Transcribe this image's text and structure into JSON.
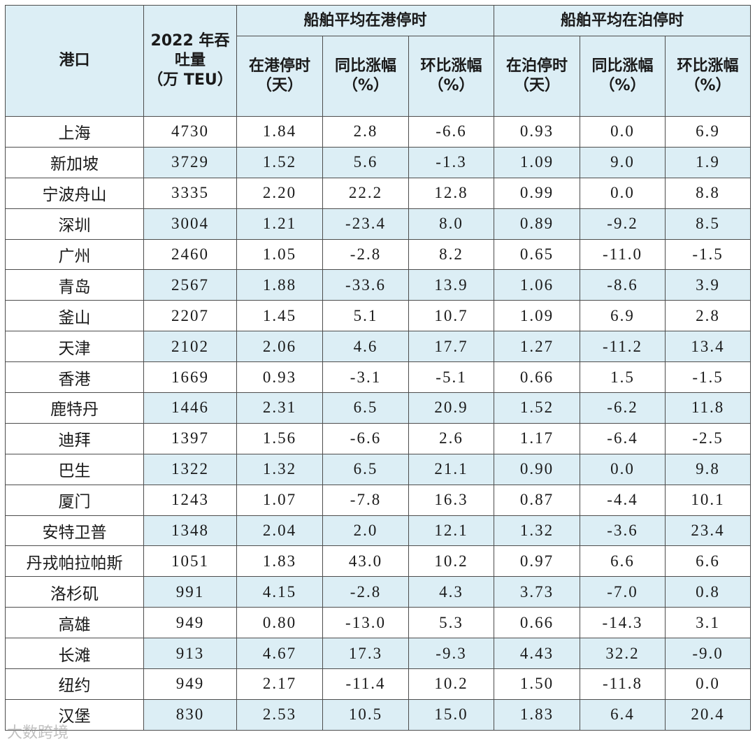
{
  "header": {
    "port_col": "港口",
    "throughput_col_line1": "2022 年吞",
    "throughput_col_line2": "吐量",
    "throughput_col_line3": "（万 TEU）",
    "group_port": "船舶平均在港停时",
    "group_berth": "船舶平均在泊停时",
    "port_time_line1": "在港停时",
    "port_time_line2": "（天）",
    "yoy_line1": "同比涨幅",
    "yoy_line2": "（%）",
    "mom_line1": "环比涨幅",
    "mom_line2": "（%）",
    "berth_time_line1": "在泊停时",
    "berth_time_line2": "（天）"
  },
  "rows": [
    [
      "上海",
      "4730",
      "1.84",
      "2.8",
      "-6.6",
      "0.93",
      "0.0",
      "6.9"
    ],
    [
      "新加坡",
      "3729",
      "1.52",
      "5.6",
      "-1.3",
      "1.09",
      "9.0",
      "1.9"
    ],
    [
      "宁波舟山",
      "3335",
      "2.20",
      "22.2",
      "12.8",
      "0.99",
      "0.0",
      "8.8"
    ],
    [
      "深圳",
      "3004",
      "1.21",
      "-23.4",
      "8.0",
      "0.89",
      "-9.2",
      "8.5"
    ],
    [
      "广州",
      "2460",
      "1.05",
      "-2.8",
      "8.2",
      "0.65",
      "-11.0",
      "-1.5"
    ],
    [
      "青岛",
      "2567",
      "1.88",
      "-33.6",
      "13.9",
      "1.06",
      "-8.6",
      "3.9"
    ],
    [
      "釜山",
      "2207",
      "1.45",
      "5.1",
      "10.7",
      "1.09",
      "6.9",
      "2.8"
    ],
    [
      "天津",
      "2102",
      "2.06",
      "4.6",
      "17.7",
      "1.27",
      "-11.2",
      "13.4"
    ],
    [
      "香港",
      "1669",
      "0.93",
      "-3.1",
      "-5.1",
      "0.66",
      "1.5",
      "-1.5"
    ],
    [
      "鹿特丹",
      "1446",
      "2.31",
      "6.5",
      "20.9",
      "1.52",
      "-6.2",
      "11.8"
    ],
    [
      "迪拜",
      "1397",
      "1.56",
      "-6.6",
      "2.6",
      "1.17",
      "-6.4",
      "-2.5"
    ],
    [
      "巴生",
      "1322",
      "1.32",
      "6.5",
      "21.1",
      "0.90",
      "0.0",
      "9.8"
    ],
    [
      "厦门",
      "1243",
      "1.07",
      "-7.8",
      "16.3",
      "0.87",
      "-4.4",
      "10.1"
    ],
    [
      "安特卫普",
      "1348",
      "2.04",
      "2.0",
      "12.1",
      "1.32",
      "-3.6",
      "23.4"
    ],
    [
      "丹戎帕拉帕斯",
      "1051",
      "1.83",
      "43.0",
      "10.2",
      "0.97",
      "6.6",
      "6.6"
    ],
    [
      "洛杉矶",
      "991",
      "4.15",
      "-2.8",
      "4.3",
      "3.73",
      "-7.0",
      "0.8"
    ],
    [
      "高雄",
      "949",
      "0.80",
      "-13.0",
      "5.3",
      "0.66",
      "-14.3",
      "3.1"
    ],
    [
      "长滩",
      "913",
      "4.67",
      "17.3",
      "-9.3",
      "4.43",
      "32.2",
      "-9.0"
    ],
    [
      "纽约",
      "949",
      "2.17",
      "-11.4",
      "10.2",
      "1.50",
      "-11.8",
      "0.0"
    ],
    [
      "汉堡",
      "830",
      "2.53",
      "10.5",
      "15.0",
      "1.83",
      "6.4",
      "20.4"
    ]
  ],
  "watermark": "大数跨境"
}
